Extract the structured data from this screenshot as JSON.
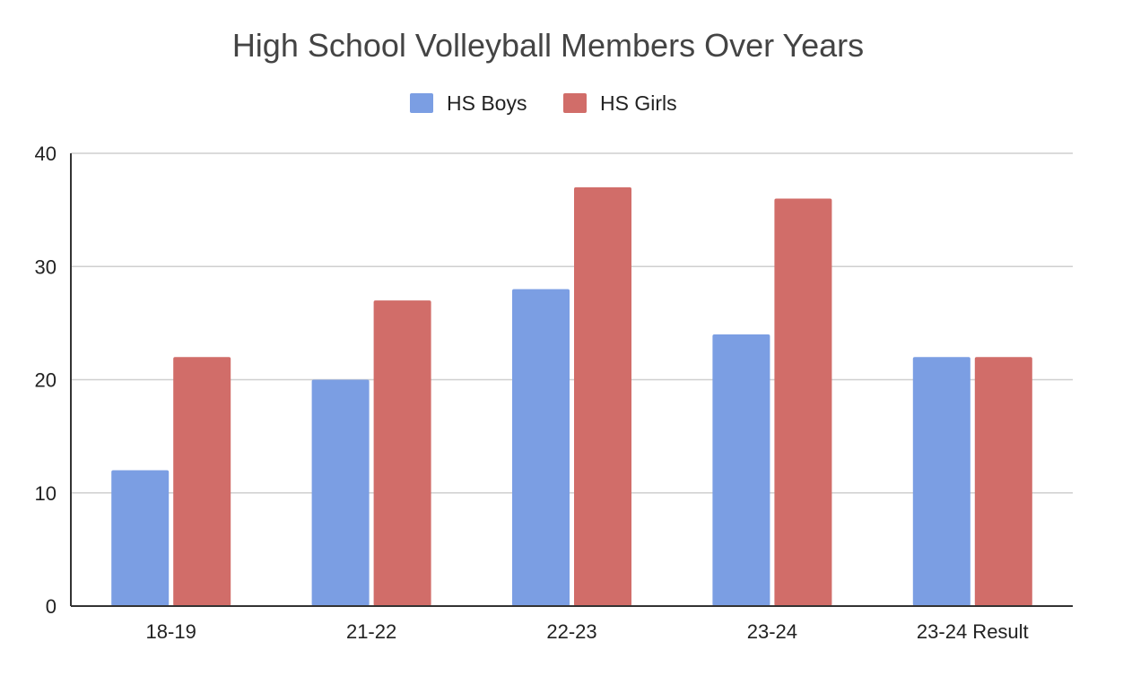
{
  "chart_data": {
    "type": "bar",
    "title": "High School Volleyball Members Over Years",
    "xlabel": "",
    "ylabel": "",
    "categories": [
      "18-19",
      "21-22",
      "22-23",
      "23-24",
      "23-24 Result"
    ],
    "series": [
      {
        "name": "HS Boys",
        "color": "#7B9EE3",
        "values": [
          12,
          20,
          28,
          24,
          22
        ]
      },
      {
        "name": "HS Girls",
        "color": "#D16D69",
        "values": [
          22,
          27,
          37,
          36,
          22
        ]
      }
    ],
    "ylim": [
      0,
      40
    ],
    "yticks": [
      0,
      10,
      20,
      30,
      40
    ],
    "grid": true,
    "legend_position": "top-center"
  }
}
